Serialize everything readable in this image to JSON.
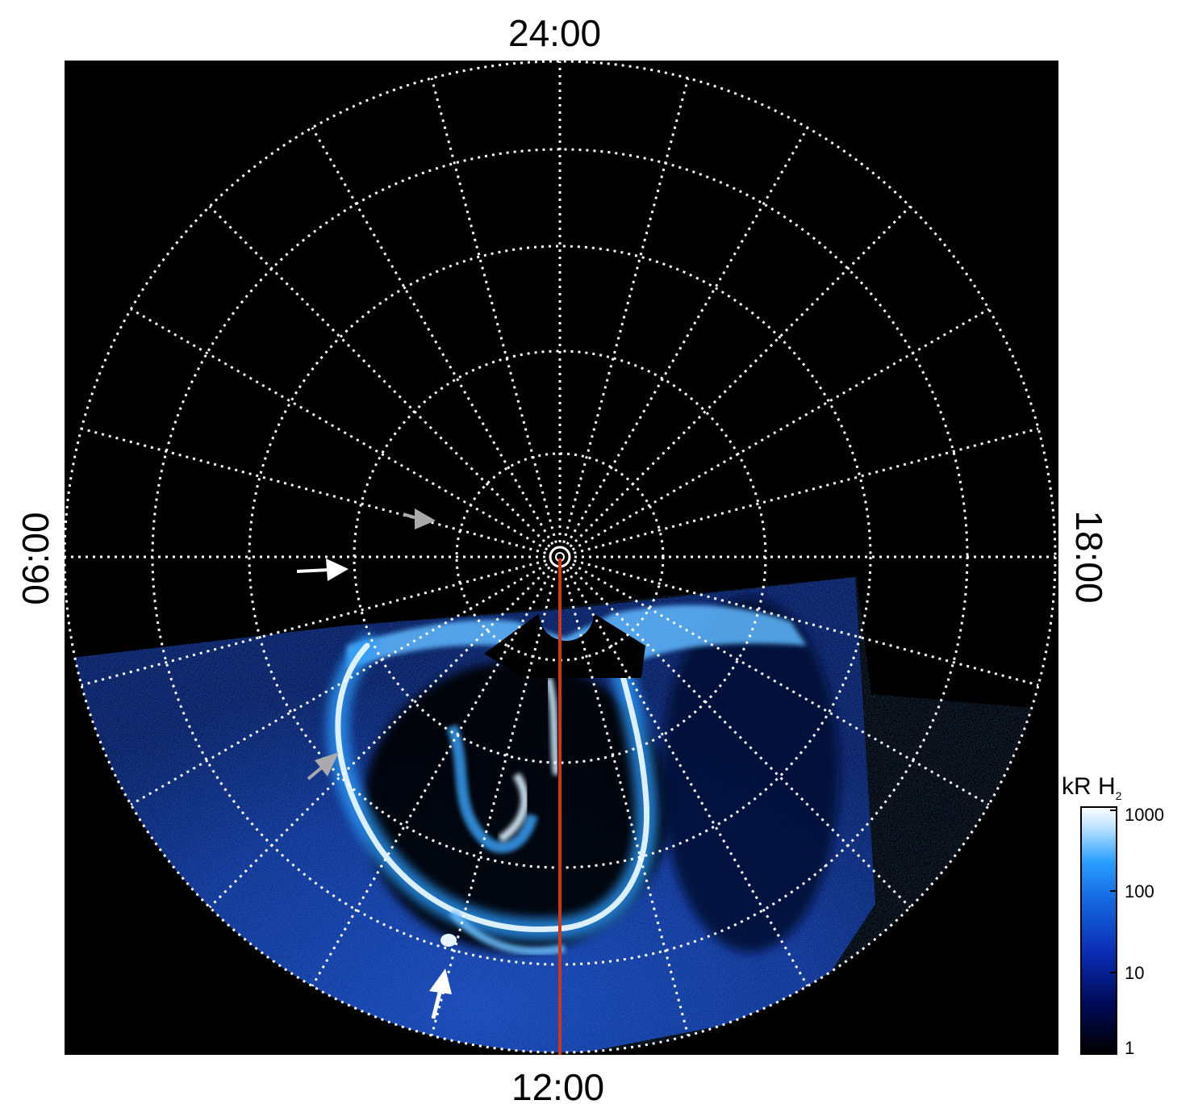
{
  "local_time_labels": {
    "top": "24:00",
    "bottom": "12:00",
    "left": "06:00",
    "right": "18:00"
  },
  "colorbar": {
    "title": "kR H",
    "title_subscript": "2",
    "ticks": [
      "1000",
      "100",
      "10",
      "1"
    ]
  },
  "colors": {
    "background": "#000000",
    "grid": "#ffffff",
    "aurora_dim": "#0a2a9e",
    "aurora_mid": "#1e88f0",
    "aurora_bright": "#e8f6ff",
    "meridian": "#d2361a",
    "arrow_white": "#ffffff",
    "arrow_gray": "#aaaaaa"
  },
  "arrows": [
    {
      "name": "arrow-upper-dark",
      "color": "gray"
    },
    {
      "name": "arrow-dawn",
      "color": "white"
    },
    {
      "name": "arrow-lower-left",
      "color": "gray"
    },
    {
      "name": "arrow-bottom",
      "color": "white"
    }
  ]
}
